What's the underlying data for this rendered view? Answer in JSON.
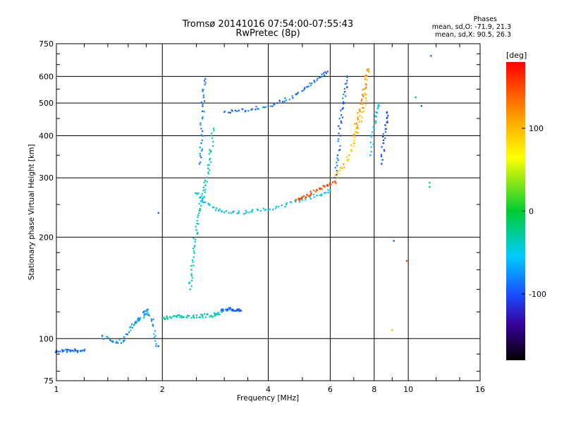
{
  "header": {
    "title_line1": "Tromsø 20141016 07:54:00-07:55:43",
    "title_line2": "RwPretec (8p)",
    "stats_title": "Phases",
    "stats_o": "mean, sd,O: -71.9, 21.3",
    "stats_x": "mean, sd,X:  90.5, 26.3"
  },
  "chart_data": {
    "type": "scatter",
    "xlabel": "Frequency [MHz]",
    "ylabel": "Stationary phase Virtual Height [km]",
    "x_scale": "log",
    "y_scale": "log",
    "xlim": [
      1,
      16
    ],
    "ylim": [
      75,
      750
    ],
    "x_ticks": [
      1,
      2,
      4,
      6,
      8,
      10,
      16
    ],
    "y_ticks": [
      75,
      100,
      200,
      300,
      400,
      500,
      600,
      750
    ],
    "grid": true,
    "colorbar": {
      "label": "[deg]",
      "ticks": [
        100,
        0,
        -100
      ],
      "range": [
        -180,
        180
      ],
      "colormap": "rainbow"
    },
    "traces": [
      {
        "name": "",
        "phase": -100,
        "x": [
          1.0,
          1.05,
          1.1,
          1.15,
          1.2
        ],
        "y": [
          92,
          92,
          92,
          92,
          92
        ]
      },
      {
        "name": "",
        "phase": -80,
        "x": [
          1.35,
          1.45,
          1.55,
          1.62,
          1.68,
          1.72,
          1.78,
          1.82,
          1.88,
          1.92
        ],
        "y": [
          102,
          98,
          98,
          108,
          112,
          114,
          118,
          122,
          110,
          95
        ]
      },
      {
        "name": "",
        "phase": -35,
        "x": [
          2.0,
          2.1,
          2.2,
          2.3,
          2.45,
          2.6,
          2.75,
          2.85,
          2.95
        ],
        "y": [
          115,
          116,
          116,
          116,
          116,
          117,
          117,
          118,
          120
        ]
      },
      {
        "name": "",
        "phase": -100,
        "x": [
          2.95,
          3.05,
          3.15,
          3.25,
          3.35
        ],
        "y": [
          122,
          122,
          122,
          121,
          121
        ]
      },
      {
        "name": "",
        "phase": -35,
        "x": [
          2.4,
          2.42,
          2.45,
          2.5,
          2.55,
          2.6,
          2.65,
          2.7,
          2.75,
          2.8
        ],
        "y": [
          140,
          160,
          185,
          210,
          240,
          260,
          285,
          320,
          360,
          420
        ]
      },
      {
        "name": "",
        "phase": -90,
        "x": [
          2.55,
          2.58,
          2.6,
          2.62,
          2.65
        ],
        "y": [
          330,
          380,
          450,
          520,
          590
        ]
      },
      {
        "name": "",
        "phase": -55,
        "x": [
          2.5,
          2.6,
          2.8,
          3.0,
          3.3,
          3.6,
          4.0,
          4.5,
          5.0,
          5.5,
          6.0
        ],
        "y": [
          270,
          258,
          245,
          237,
          236,
          238,
          242,
          250,
          258,
          266,
          275
        ]
      },
      {
        "name": "",
        "phase": -95,
        "x": [
          3.0,
          3.3,
          3.6,
          4.0,
          4.4,
          4.8,
          5.2,
          5.6,
          5.9
        ],
        "y": [
          470,
          475,
          480,
          490,
          505,
          530,
          560,
          595,
          620
        ]
      },
      {
        "name": "",
        "phase": 150,
        "x": [
          4.8,
          5.0,
          5.3,
          5.6,
          5.9,
          6.2
        ],
        "y": [
          258,
          263,
          270,
          278,
          286,
          292
        ]
      },
      {
        "name": "",
        "phase": 90,
        "x": [
          6.2,
          6.5,
          6.8,
          7.0,
          7.2,
          7.4,
          7.6
        ],
        "y": [
          300,
          320,
          350,
          380,
          420,
          470,
          530
        ]
      },
      {
        "name": "",
        "phase": 120,
        "x": [
          7.0,
          7.2,
          7.4,
          7.5,
          7.6,
          7.7
        ],
        "y": [
          400,
          450,
          500,
          550,
          600,
          630
        ]
      },
      {
        "name": "",
        "phase": -100,
        "x": [
          6.2,
          6.3,
          6.4,
          6.5,
          6.6,
          6.7
        ],
        "y": [
          300,
          350,
          420,
          480,
          540,
          600
        ]
      },
      {
        "name": "",
        "phase": -110,
        "x": [
          8.4,
          8.5,
          8.6,
          8.7
        ],
        "y": [
          330,
          380,
          430,
          470
        ]
      },
      {
        "name": "",
        "phase": -60,
        "x": [
          7.8,
          8.0,
          8.1,
          8.2
        ],
        "y": [
          350,
          420,
          470,
          500
        ]
      }
    ],
    "outliers": [
      {
        "x": 1.95,
        "y": 236,
        "phase": -100
      },
      {
        "x": 1.95,
        "y": 95,
        "phase": -100
      },
      {
        "x": 9.1,
        "y": 195,
        "phase": -100
      },
      {
        "x": 9.0,
        "y": 106,
        "phase": 100
      },
      {
        "x": 9.9,
        "y": 170,
        "phase": 150
      },
      {
        "x": 10.5,
        "y": 520,
        "phase": -20
      },
      {
        "x": 10.9,
        "y": 490,
        "phase": -100
      },
      {
        "x": 11.6,
        "y": 690,
        "phase": -100
      },
      {
        "x": 11.5,
        "y": 282,
        "phase": -30
      },
      {
        "x": 11.5,
        "y": 290,
        "phase": -30
      }
    ]
  }
}
